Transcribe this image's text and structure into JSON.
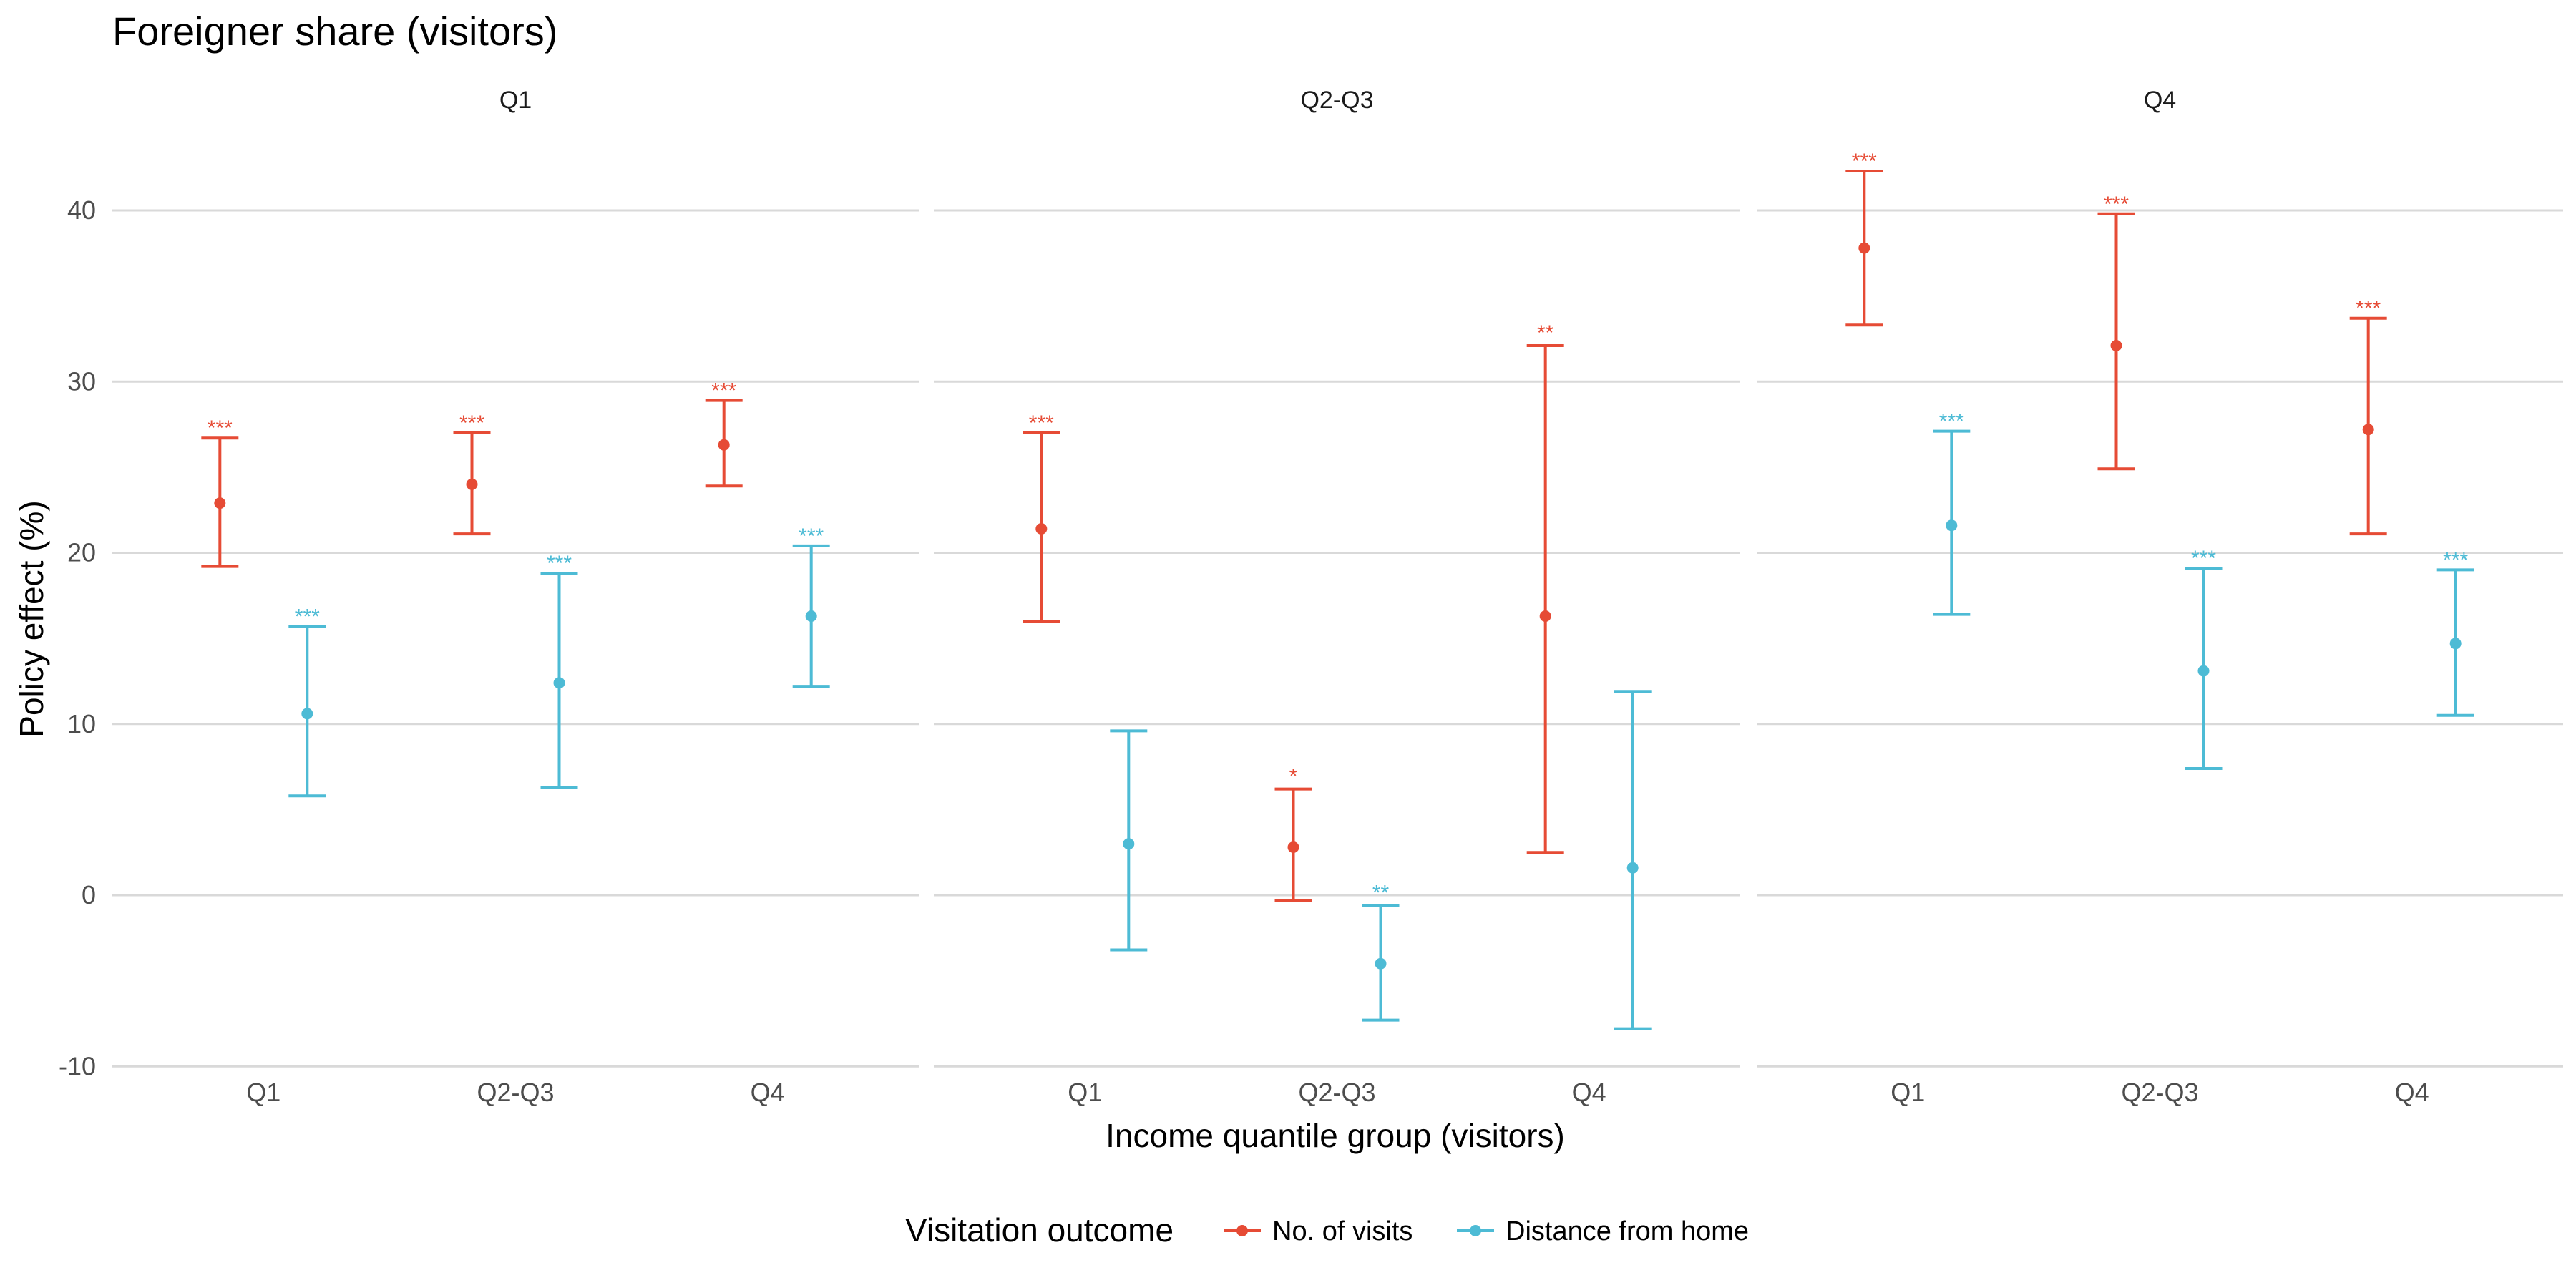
{
  "chart_data": {
    "type": "scatter",
    "title": "Foreigner share (visitors)",
    "xlabel": "Income quantile group (visitors)",
    "ylabel": "Policy effect (%)",
    "ylim": [
      -10,
      45
    ],
    "yticks": [
      -10,
      0,
      10,
      20,
      30,
      40
    ],
    "categories": [
      "Q1",
      "Q2-Q3",
      "Q4"
    ],
    "grid": "horizontal major",
    "legend": {
      "title": "Visitation outcome",
      "position": "bottom",
      "entries": [
        {
          "label": "No. of visits",
          "color": "#E64B35"
        },
        {
          "label": "Distance from home",
          "color": "#4DBBD5"
        }
      ]
    },
    "panels": [
      {
        "label": "Q1",
        "series": [
          {
            "name": "No. of visits",
            "color": "#E64B35",
            "estimate": [
              22.9,
              24.0,
              26.3
            ],
            "lower": [
              19.2,
              21.1,
              23.9
            ],
            "upper": [
              26.7,
              27.0,
              28.9
            ],
            "sig": [
              "***",
              "***",
              "***"
            ]
          },
          {
            "name": "Distance from home",
            "color": "#4DBBD5",
            "estimate": [
              10.6,
              12.4,
              16.3
            ],
            "lower": [
              5.8,
              6.3,
              12.2
            ],
            "upper": [
              15.7,
              18.8,
              20.4
            ],
            "sig": [
              "***",
              "***",
              "***"
            ]
          }
        ]
      },
      {
        "label": "Q2-Q3",
        "series": [
          {
            "name": "No. of visits",
            "color": "#E64B35",
            "estimate": [
              21.4,
              2.8,
              16.3
            ],
            "lower": [
              16.0,
              -0.3,
              2.5
            ],
            "upper": [
              27.0,
              6.2,
              32.1
            ],
            "sig": [
              "***",
              "*",
              "**"
            ]
          },
          {
            "name": "Distance from home",
            "color": "#4DBBD5",
            "estimate": [
              3.0,
              -4.0,
              1.6
            ],
            "lower": [
              -3.2,
              -7.3,
              -7.8
            ],
            "upper": [
              9.6,
              -0.6,
              11.9
            ],
            "sig": [
              "",
              "**",
              ""
            ]
          }
        ]
      },
      {
        "label": "Q4",
        "series": [
          {
            "name": "No. of visits",
            "color": "#E64B35",
            "estimate": [
              37.8,
              32.1,
              27.2
            ],
            "lower": [
              33.3,
              24.9,
              21.1
            ],
            "upper": [
              42.3,
              39.8,
              33.7
            ],
            "sig": [
              "***",
              "***",
              "***"
            ]
          },
          {
            "name": "Distance from home",
            "color": "#4DBBD5",
            "estimate": [
              21.6,
              13.1,
              14.7
            ],
            "lower": [
              16.4,
              7.4,
              10.5
            ],
            "upper": [
              27.1,
              19.1,
              19.0
            ],
            "sig": [
              "***",
              "***",
              "***"
            ]
          }
        ]
      }
    ]
  }
}
